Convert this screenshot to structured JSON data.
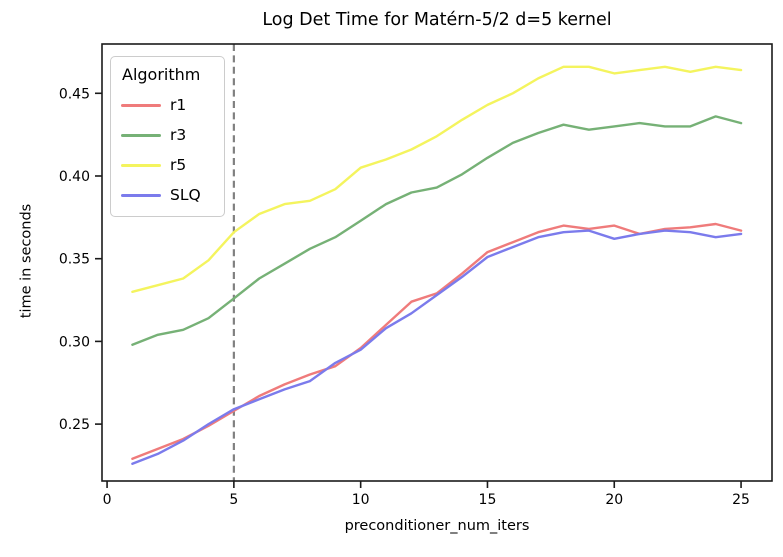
{
  "chart_data": {
    "type": "line",
    "title": "Log Det Time for Matérn-5/2 d=5 kernel",
    "xlabel": "preconditioner_num_iters",
    "ylabel": "time in seconds",
    "legend_title": "Algorithm",
    "legend_position": "upper left",
    "grid": false,
    "xlim": [
      -0.2,
      26.22
    ],
    "ylim": [
      0.2156,
      0.4798
    ],
    "xticks": [
      0,
      5,
      10,
      15,
      20,
      25
    ],
    "xtick_labels": [
      "0",
      "5",
      "10",
      "15",
      "20",
      "25"
    ],
    "yticks": [
      0.25,
      0.3,
      0.35,
      0.4,
      0.45
    ],
    "ytick_labels": [
      "0.25",
      "0.30",
      "0.35",
      "0.40",
      "0.45"
    ],
    "vline": {
      "x": 5,
      "color": "#808080",
      "style": "dashed"
    },
    "x": [
      1,
      2,
      3,
      4,
      5,
      6,
      7,
      8,
      9,
      10,
      11,
      12,
      13,
      14,
      15,
      16,
      17,
      18,
      19,
      20,
      21,
      22,
      23,
      24,
      25
    ],
    "series": [
      {
        "name": "r1",
        "color": "#ef7b7b",
        "values": [
          0.229,
          0.235,
          0.241,
          0.249,
          0.258,
          0.267,
          0.274,
          0.28,
          0.285,
          0.296,
          0.31,
          0.324,
          0.329,
          0.341,
          0.354,
          0.36,
          0.366,
          0.37,
          0.368,
          0.37,
          0.365,
          0.368,
          0.369,
          0.371,
          0.367
        ]
      },
      {
        "name": "r3",
        "color": "#76b176",
        "values": [
          0.298,
          0.304,
          0.307,
          0.314,
          0.326,
          0.338,
          0.347,
          0.356,
          0.363,
          0.373,
          0.383,
          0.39,
          0.393,
          0.401,
          0.411,
          0.42,
          0.426,
          0.431,
          0.428,
          0.43,
          0.432,
          0.43,
          0.43,
          0.436,
          0.432
        ]
      },
      {
        "name": "r5",
        "color": "#f4f45e",
        "values": [
          0.33,
          0.334,
          0.338,
          0.349,
          0.366,
          0.377,
          0.383,
          0.385,
          0.392,
          0.405,
          0.41,
          0.416,
          0.424,
          0.434,
          0.443,
          0.45,
          0.459,
          0.466,
          0.466,
          0.462,
          0.464,
          0.466,
          0.463,
          0.466,
          0.464
        ]
      },
      {
        "name": "SLQ",
        "color": "#7b7bec",
        "values": [
          0.226,
          0.232,
          0.24,
          0.25,
          0.259,
          0.265,
          0.271,
          0.276,
          0.287,
          0.295,
          0.308,
          0.317,
          0.328,
          0.339,
          0.351,
          0.357,
          0.363,
          0.366,
          0.367,
          0.362,
          0.365,
          0.367,
          0.366,
          0.363,
          0.365
        ]
      }
    ]
  }
}
